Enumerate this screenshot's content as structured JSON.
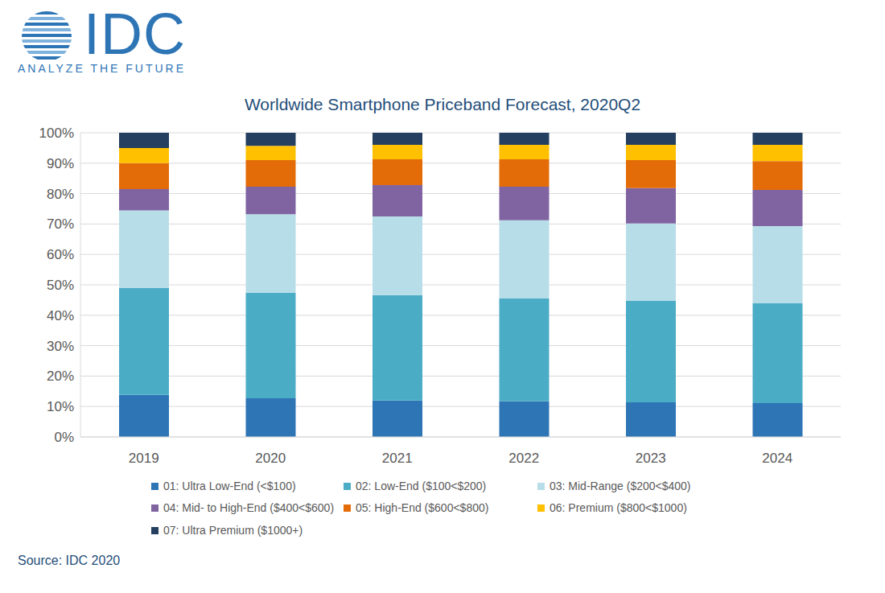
{
  "chart_data": {
    "type": "bar",
    "title": "Worldwide Smartphone Priceband Forecast, 2020Q2",
    "categories": [
      "2019",
      "2020",
      "2021",
      "2022",
      "2023",
      "2024"
    ],
    "series": [
      {
        "name": "01: Ultra Low-End (<$100)",
        "color": "#2e75b6",
        "values": [
          13.8,
          12.7,
          12.0,
          11.7,
          11.4,
          11.1
        ]
      },
      {
        "name": "02: Low-End ($100<$200)",
        "color": "#4bacc6",
        "values": [
          35.2,
          34.7,
          34.6,
          33.8,
          33.3,
          32.8
        ]
      },
      {
        "name": "03: Mid-Range ($200<$400)",
        "color": "#b7dee8",
        "values": [
          25.5,
          25.8,
          25.9,
          25.7,
          25.5,
          25.4
        ]
      },
      {
        "name": "04: Mid- to High-End ($400<$600)",
        "color": "#8064a2",
        "values": [
          7.0,
          9.1,
          10.3,
          11.1,
          11.6,
          11.9
        ]
      },
      {
        "name": "05: High-End ($600<$800)",
        "color": "#e36c09",
        "values": [
          8.5,
          8.7,
          8.5,
          9.0,
          9.2,
          9.5
        ]
      },
      {
        "name": "06: Premium ($800<$1000)",
        "color": "#ffc000",
        "values": [
          5.0,
          4.7,
          4.7,
          4.7,
          5.0,
          5.3
        ]
      },
      {
        "name": "07: Ultra Premium ($1000+)",
        "color": "#243f60",
        "values": [
          5.0,
          4.3,
          4.0,
          4.0,
          4.0,
          4.0
        ]
      }
    ],
    "ylim": [
      0,
      100
    ],
    "yticks": [
      {
        "value": 0,
        "label": "0%"
      },
      {
        "value": 10,
        "label": "10%"
      },
      {
        "value": 20,
        "label": "20%"
      },
      {
        "value": 30,
        "label": "30%"
      },
      {
        "value": 40,
        "label": "40%"
      },
      {
        "value": 50,
        "label": "50%"
      },
      {
        "value": 60,
        "label": "60%"
      },
      {
        "value": 70,
        "label": "70%"
      },
      {
        "value": 80,
        "label": "80%"
      },
      {
        "value": 90,
        "label": "90%"
      },
      {
        "value": 100,
        "label": "100%"
      }
    ],
    "grid": true,
    "stacked": true,
    "legend": "bottom",
    "annotations": [
      "IDC",
      "ANALYZE THE FUTURE",
      "Source: IDC 2020"
    ]
  }
}
